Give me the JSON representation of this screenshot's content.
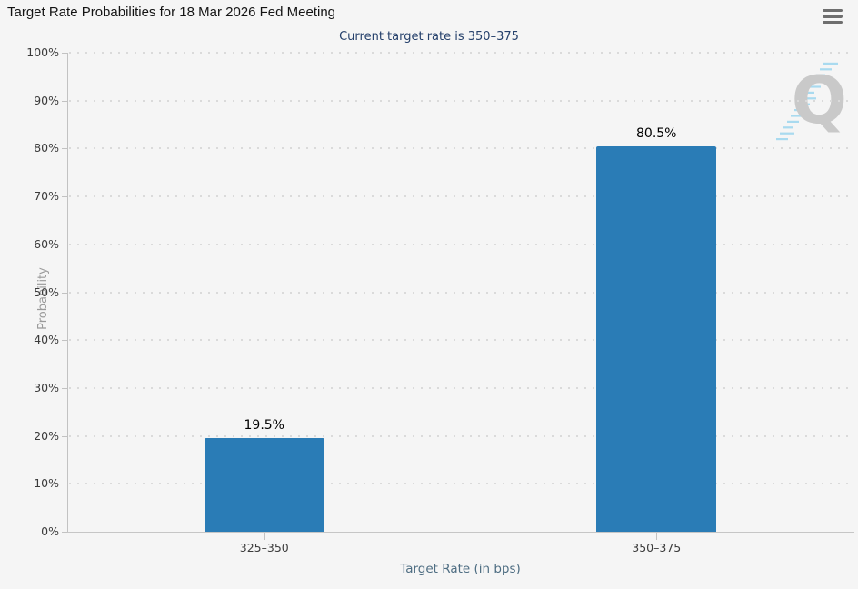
{
  "header": {
    "title": "Target Rate Probabilities for 18 Mar 2026 Fed Meeting",
    "menu_tooltip": "Chart context menu"
  },
  "chart_data": {
    "type": "bar",
    "title": "Target Rate Probabilities for 18 Mar 2026 Fed Meeting",
    "subtitle": "Current target rate is 350–375",
    "categories": [
      "325–350",
      "350–375"
    ],
    "values": [
      19.5,
      80.5
    ],
    "value_labels": [
      "19.5%",
      "80.5%"
    ],
    "xlabel": "Target Rate (in bps)",
    "ylabel": "Probability",
    "ylim": [
      0,
      100
    ],
    "ytick_step": 10,
    "ytick_suffix": "%",
    "legend": "none",
    "grid": "dotted-horizontal",
    "bar_color": "#2a7cb6"
  },
  "watermark": {
    "letter": "Q"
  },
  "colors": {
    "background": "#f5f5f5",
    "bar": "#2a7cb6",
    "subtitle": "#25406b",
    "axis": "#c2c2c2",
    "grid_dots": "#dadada",
    "tick_text": "#3b3b3b",
    "xaxis_title": "#4e6d82",
    "yaxis_title": "#9a9a9a",
    "watermark_q": "#c9c9c9",
    "watermark_streak": "#a9daef",
    "menu_icon": "#6e6e6e"
  }
}
